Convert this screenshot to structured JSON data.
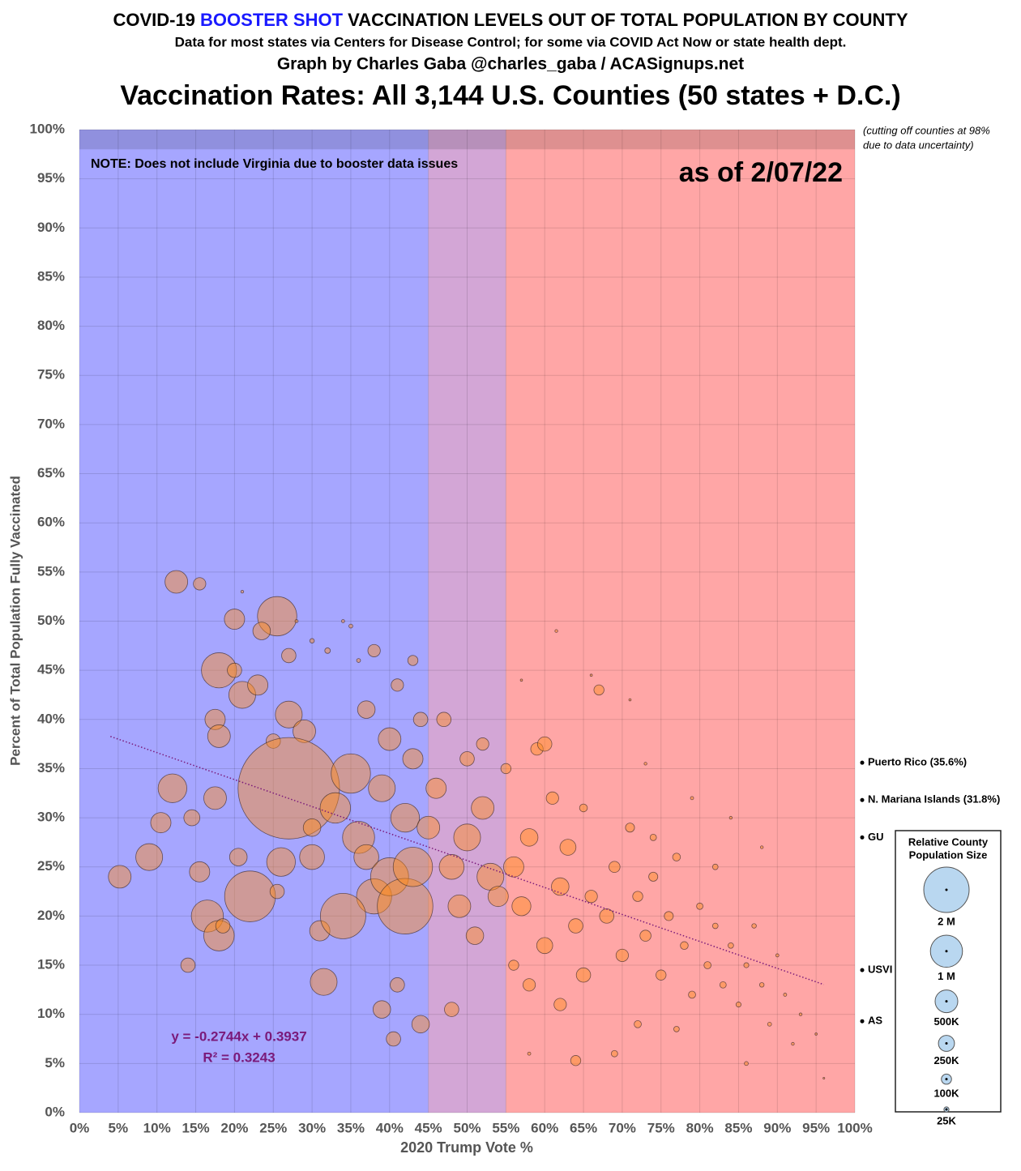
{
  "chart_data": {
    "type": "scatter",
    "title_parts": [
      "COVID-19 ",
      "BOOSTER SHOT",
      " VACCINATION LEVELS OUT OF TOTAL POPULATION BY COUNTY"
    ],
    "subtitle": "Data for most states via Centers for Disease Control; for some via COVID Act Now or state health dept.",
    "credit": "Graph by Charles Gaba @charles_gaba / ACASignups.net",
    "heading": "Vaccination Rates: All 3,144 U.S. Counties (50 states + D.C.)",
    "note": "NOTE: Does not include Virginia due to booster data issues",
    "date_label": "as of 2/07/22",
    "cutoff_note": [
      "(cutting off counties at 98%",
      "due to data uncertainty)"
    ],
    "cutoff": 98,
    "xlabel": "2020 Trump Vote %",
    "ylabel": "Percent of Total Population Fully Vaccinated",
    "xlim": [
      0,
      100
    ],
    "ylim": [
      0,
      100
    ],
    "xticks": [
      {
        "value": 0,
        "label": "0%"
      },
      {
        "value": 5,
        "label": "5%"
      },
      {
        "value": 10,
        "label": "10%"
      },
      {
        "value": 15,
        "label": "15%"
      },
      {
        "value": 20,
        "label": "20%"
      },
      {
        "value": 25,
        "label": "25%"
      },
      {
        "value": 30,
        "label": "30%"
      },
      {
        "value": 35,
        "label": "35%"
      },
      {
        "value": 40,
        "label": "40%"
      },
      {
        "value": 45,
        "label": "45%"
      },
      {
        "value": 50,
        "label": "50%"
      },
      {
        "value": 55,
        "label": "55%"
      },
      {
        "value": 60,
        "label": "60%"
      },
      {
        "value": 65,
        "label": "65%"
      },
      {
        "value": 70,
        "label": "70%"
      },
      {
        "value": 75,
        "label": "75%"
      },
      {
        "value": 80,
        "label": "80%"
      },
      {
        "value": 85,
        "label": "85%"
      },
      {
        "value": 90,
        "label": "90%"
      },
      {
        "value": 95,
        "label": "95%"
      },
      {
        "value": 100,
        "label": "100%"
      }
    ],
    "yticks": [
      {
        "value": 0,
        "label": "0%"
      },
      {
        "value": 5,
        "label": "5%"
      },
      {
        "value": 10,
        "label": "10%"
      },
      {
        "value": 15,
        "label": "15%"
      },
      {
        "value": 20,
        "label": "20%"
      },
      {
        "value": 25,
        "label": "25%"
      },
      {
        "value": 30,
        "label": "30%"
      },
      {
        "value": 35,
        "label": "35%"
      },
      {
        "value": 40,
        "label": "40%"
      },
      {
        "value": 45,
        "label": "45%"
      },
      {
        "value": 50,
        "label": "50%"
      },
      {
        "value": 55,
        "label": "55%"
      },
      {
        "value": 60,
        "label": "60%"
      },
      {
        "value": 65,
        "label": "65%"
      },
      {
        "value": 70,
        "label": "70%"
      },
      {
        "value": 75,
        "label": "75%"
      },
      {
        "value": 80,
        "label": "80%"
      },
      {
        "value": 85,
        "label": "85%"
      },
      {
        "value": 90,
        "label": "90%"
      },
      {
        "value": 95,
        "label": "95%"
      },
      {
        "value": 100,
        "label": "100%"
      }
    ],
    "grid": true,
    "regions": [
      {
        "from": 0,
        "to": 45,
        "color": "#a6a6ff"
      },
      {
        "from": 45,
        "to": 55,
        "color": "#d3a6d6"
      },
      {
        "from": 55,
        "to": 100,
        "color": "#ffa6a6"
      }
    ],
    "series": [
      {
        "color": "#ff8c1a",
        "opacity": 0.45,
        "x": [
          12.5,
          15.5,
          20,
          25.5,
          23.5,
          27,
          18,
          21,
          23,
          20,
          17.5,
          18,
          27,
          29,
          25,
          27,
          12,
          17.5,
          9,
          5.2,
          10.5,
          14.5,
          15.5,
          16.5,
          18,
          22,
          26,
          25.5,
          30,
          31,
          31.5,
          14,
          18.5,
          20.5,
          30,
          33,
          35,
          36,
          38,
          37,
          34,
          40,
          42,
          43,
          42,
          39,
          40,
          37,
          43,
          44,
          41,
          38,
          43,
          39,
          40.5,
          44,
          41,
          45,
          46,
          47,
          48,
          49,
          50,
          51,
          52,
          48,
          53,
          54,
          50,
          52,
          56,
          58,
          57,
          59,
          60,
          62,
          63,
          64,
          61,
          60,
          65,
          67,
          62,
          64,
          66,
          68,
          69,
          70,
          71,
          72,
          73,
          74,
          75,
          76,
          77,
          78,
          79,
          80,
          81,
          82,
          83,
          84,
          85,
          86,
          87,
          88,
          89,
          90,
          91,
          92,
          93,
          95,
          96,
          61.5,
          66,
          71,
          57,
          73,
          79,
          84,
          88,
          72,
          69,
          77,
          58,
          86,
          82,
          74,
          65,
          55,
          56,
          58,
          34,
          35,
          28,
          21,
          30,
          32,
          36
        ],
        "values": [
          54,
          53.8,
          50.2,
          50.5,
          49,
          46.5,
          45,
          42.5,
          43.5,
          45,
          40,
          38.3,
          40.5,
          38.8,
          37.8,
          33,
          33,
          32,
          26,
          24,
          29.5,
          30,
          24.5,
          20,
          18,
          22,
          25.5,
          22.5,
          26,
          18.5,
          13.3,
          15,
          19,
          26,
          29,
          31,
          34.5,
          28,
          22,
          26,
          20,
          24,
          21,
          25,
          30,
          33,
          38,
          41,
          36,
          40,
          43.5,
          47,
          46,
          10.5,
          7.5,
          9,
          13,
          29,
          33,
          40,
          25,
          21,
          28,
          18,
          31,
          10.5,
          24,
          22,
          36,
          37.5,
          25,
          28,
          21,
          37,
          37.5,
          23,
          27,
          19,
          32,
          17,
          14,
          43,
          11,
          5.3,
          22,
          20,
          25,
          16,
          29,
          22,
          18,
          24,
          14,
          20,
          26,
          17,
          12,
          21,
          15,
          19,
          13,
          17,
          11,
          15,
          19,
          13,
          9,
          16,
          12,
          7,
          10,
          8,
          3.5,
          49,
          44.5,
          42,
          44,
          35.5,
          32,
          30,
          27,
          9,
          6,
          8.5,
          6,
          5,
          25,
          28,
          31,
          35,
          15,
          13,
          50,
          49.5,
          50,
          53,
          48,
          47,
          46
        ],
        "sizes": [
          500000,
          150000,
          400000,
          1500000,
          300000,
          200000,
          1200000,
          700000,
          400000,
          200000,
          400000,
          500000,
          700000,
          500000,
          200000,
          10000000,
          800000,
          500000,
          700000,
          500000,
          400000,
          250000,
          400000,
          1000000,
          900000,
          2500000,
          800000,
          200000,
          600000,
          400000,
          700000,
          200000,
          200000,
          300000,
          300000,
          900000,
          1500000,
          1000000,
          1200000,
          600000,
          2000000,
          1400000,
          3000000,
          1500000,
          800000,
          700000,
          500000,
          300000,
          400000,
          200000,
          150000,
          150000,
          100000,
          300000,
          200000,
          300000,
          200000,
          500000,
          400000,
          200000,
          600000,
          500000,
          700000,
          300000,
          500000,
          200000,
          700000,
          400000,
          200000,
          150000,
          400000,
          300000,
          350000,
          150000,
          200000,
          300000,
          250000,
          200000,
          150000,
          250000,
          200000,
          100000,
          150000,
          100000,
          150000,
          200000,
          120000,
          150000,
          80000,
          100000,
          120000,
          80000,
          100000,
          80000,
          60000,
          60000,
          50000,
          40000,
          50000,
          30000,
          40000,
          30000,
          25000,
          25000,
          20000,
          20000,
          15000,
          10000,
          10000,
          8000,
          8000,
          5000,
          3000,
          8000,
          5000,
          5000,
          5000,
          8000,
          10000,
          8000,
          8000,
          50000,
          40000,
          30000,
          10000,
          15000,
          30000,
          40000,
          60000,
          100000,
          100000,
          150000,
          10000,
          15000,
          10000,
          8000,
          20000,
          30000,
          15000
        ]
      }
    ],
    "trendline": {
      "equation": "y = -0.2744x + 0.3937",
      "r2_label": "R² = 0.3243",
      "slope": -0.2744,
      "intercept": 0.3937,
      "x_start": 4,
      "x_end": 96,
      "color": "#7a1a7a"
    },
    "territories": [
      {
        "label": "Puerto Rico (35.6%)",
        "value": 35.6
      },
      {
        "label": "N. Mariana Islands (31.8%)",
        "value": 31.8
      },
      {
        "label": "GU",
        "value": 28
      },
      {
        "label": "USVI",
        "value": 14.5
      },
      {
        "label": "AS",
        "value": 9.3
      }
    ],
    "size_legend": {
      "title": [
        "Relative County",
        "Population Size"
      ],
      "items": [
        {
          "value": 2000000,
          "label": "2 M"
        },
        {
          "value": 1000000,
          "label": "1 M"
        },
        {
          "value": 500000,
          "label": "500K"
        },
        {
          "value": 250000,
          "label": "250K"
        },
        {
          "value": 100000,
          "label": "100K"
        },
        {
          "value": 25000,
          "label": "25K"
        }
      ]
    }
  }
}
